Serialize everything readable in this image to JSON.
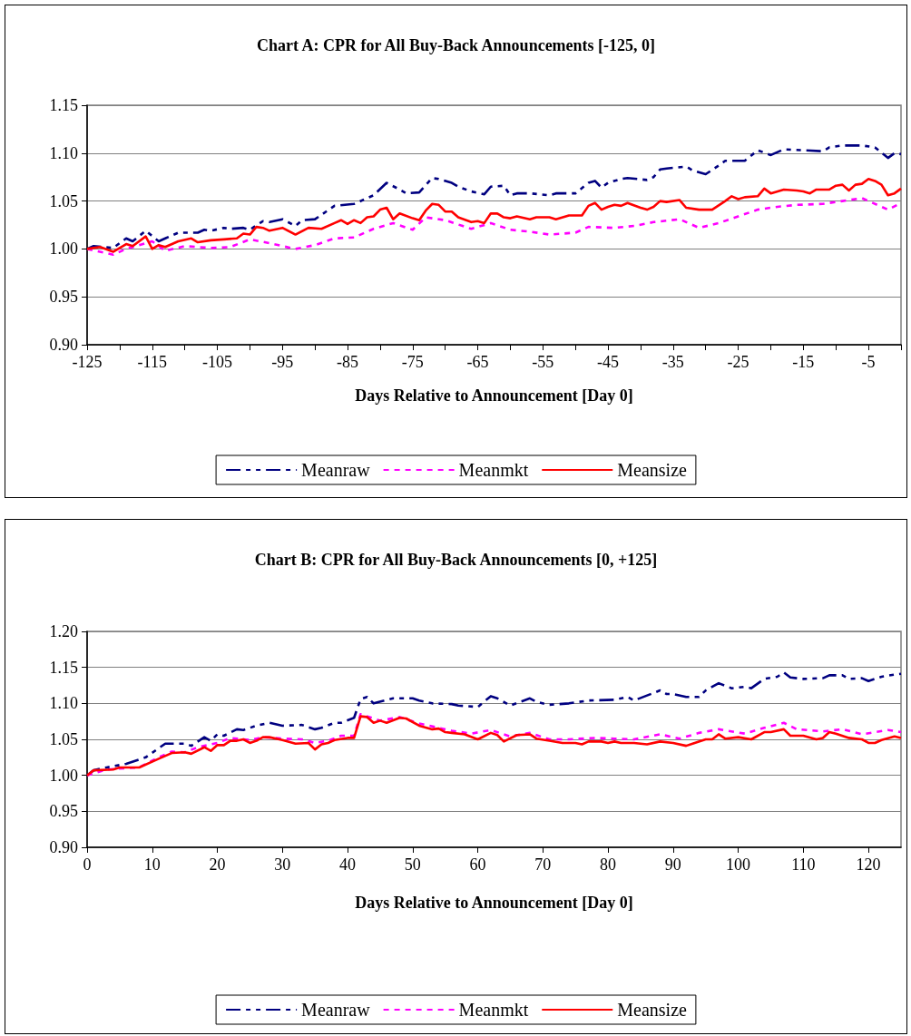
{
  "chart_data": [
    {
      "type": "line",
      "title": "Chart A: CPR for All Buy-Back Announcements [-125, 0]",
      "xlabel": "Days Relative to Announcement [Day 0]",
      "xlim": [
        -125,
        0
      ],
      "xticks": [
        -125,
        {
          "value": -120,
          "label": null
        },
        -115,
        {
          "value": -110,
          "label": null
        },
        -105,
        {
          "value": -100,
          "label": null
        },
        -95,
        {
          "value": -90,
          "label": null
        },
        -85,
        {
          "value": -80,
          "label": null
        },
        -75,
        {
          "value": -70,
          "label": null
        },
        -65,
        {
          "value": -60,
          "label": null
        },
        -55,
        {
          "value": -50,
          "label": null
        },
        -45,
        {
          "value": -40,
          "label": null
        },
        -35,
        {
          "value": -30,
          "label": null
        },
        -25,
        {
          "value": -20,
          "label": null
        },
        -15,
        {
          "value": -10,
          "label": null
        },
        -5,
        {
          "value": 0,
          "label": null
        }
      ],
      "ylim": [
        0.9,
        1.15
      ],
      "yticks": [
        {
          "value": 0.9,
          "label": "0.90"
        },
        {
          "value": 0.95,
          "label": "0.95"
        },
        {
          "value": 1.0,
          "label": "1.00"
        },
        {
          "value": 1.05,
          "label": "1.05"
        },
        {
          "value": 1.1,
          "label": "1.10"
        },
        {
          "value": 1.15,
          "label": "1.15"
        }
      ],
      "grid": "y",
      "legend": "bottom",
      "marker": "none",
      "series": [
        {
          "name": "Meanraw",
          "color": "#000080",
          "line_style": "dashed",
          "x": [
            -125,
            -124,
            -121,
            -119,
            -118,
            -116,
            -114,
            -113,
            -111,
            -108,
            -107,
            -106,
            -104,
            -103,
            -101,
            -100,
            -98,
            -97,
            -95,
            -93,
            -92,
            -90,
            -87,
            -84,
            -81,
            -79,
            -77,
            -76,
            -74,
            -72,
            -71,
            -69,
            -68,
            -66,
            -64,
            -63,
            -61,
            -60,
            -59,
            -57,
            -54,
            -53,
            -50,
            -48,
            -47,
            -46,
            -45,
            -43,
            -42,
            -39,
            -38,
            -37,
            -36,
            -33,
            -32,
            -30,
            -28,
            -27,
            -24,
            -22,
            -20,
            -18,
            -15,
            -12,
            -11,
            -9,
            -6,
            -4,
            -2,
            -1,
            0
          ],
          "values": [
            1.0,
            1.003,
            1.001,
            1.011,
            1.008,
            1.019,
            1.008,
            1.011,
            1.017,
            1.017,
            1.02,
            1.019,
            1.022,
            1.021,
            1.022,
            1.02,
            1.029,
            1.028,
            1.031,
            1.024,
            1.03,
            1.031,
            1.045,
            1.047,
            1.056,
            1.069,
            1.062,
            1.058,
            1.059,
            1.074,
            1.073,
            1.069,
            1.065,
            1.06,
            1.057,
            1.065,
            1.066,
            1.056,
            1.058,
            1.058,
            1.056,
            1.058,
            1.058,
            1.069,
            1.071,
            1.064,
            1.069,
            1.073,
            1.074,
            1.072,
            1.075,
            1.083,
            1.084,
            1.086,
            1.082,
            1.078,
            1.087,
            1.092,
            1.092,
            1.103,
            1.098,
            1.104,
            1.103,
            1.102,
            1.106,
            1.108,
            1.108,
            1.106,
            1.095,
            1.1,
            1.099
          ]
        },
        {
          "name": "Meanmkt",
          "color": "#ff00ff",
          "line_style": "dotted",
          "x": [
            -125,
            -121,
            -119,
            -115,
            -113,
            -110,
            -106,
            -103,
            -100,
            -97,
            -93,
            -90,
            -87,
            -84,
            -81,
            -78,
            -75,
            -73,
            -70,
            -66,
            -63,
            -60,
            -57,
            -54,
            -50,
            -48,
            -44,
            -41,
            -38,
            -34,
            -31,
            -28,
            -25,
            -22,
            -19,
            -16,
            -12,
            -9,
            -6,
            -2,
            0
          ],
          "values": [
            1.0,
            0.994,
            1.0,
            1.008,
            0.998,
            1.003,
            1.001,
            1.002,
            1.01,
            1.006,
            1.0,
            1.004,
            1.011,
            1.012,
            1.021,
            1.027,
            1.02,
            1.033,
            1.03,
            1.021,
            1.027,
            1.02,
            1.018,
            1.015,
            1.017,
            1.023,
            1.022,
            1.024,
            1.028,
            1.031,
            1.022,
            1.027,
            1.034,
            1.041,
            1.044,
            1.046,
            1.047,
            1.05,
            1.053,
            1.041,
            1.048
          ]
        },
        {
          "name": "Meansize",
          "color": "#ff0000",
          "line_style": "solid",
          "x": [
            -125,
            -123,
            -121,
            -119,
            -118,
            -116,
            -115,
            -114,
            -113,
            -111,
            -109,
            -108,
            -106,
            -104,
            -102,
            -101,
            -100,
            -99,
            -98,
            -97,
            -95,
            -93,
            -91,
            -89,
            -87,
            -86,
            -85,
            -84,
            -83,
            -82,
            -81,
            -80,
            -79,
            -78,
            -77,
            -75,
            -74,
            -73,
            -72,
            -71,
            -70,
            -69,
            -68,
            -66,
            -65,
            -64,
            -63,
            -62,
            -61,
            -60,
            -59,
            -57,
            -56,
            -54,
            -53,
            -51,
            -49,
            -48,
            -47,
            -46,
            -45,
            -44,
            -43,
            -42,
            -40,
            -39,
            -38,
            -37,
            -36,
            -34,
            -33,
            -31,
            -29,
            -27,
            -26,
            -25,
            -24,
            -22,
            -21,
            -20,
            -18,
            -16,
            -15,
            -14,
            -13,
            -11,
            -10,
            -9,
            -8,
            -7,
            -6,
            -5,
            -4,
            -3,
            -2,
            -1,
            0
          ],
          "values": [
            1.0,
            1.002,
            0.997,
            1.005,
            1.003,
            1.013,
            1.0,
            1.004,
            1.002,
            1.008,
            1.011,
            1.007,
            1.009,
            1.01,
            1.011,
            1.016,
            1.015,
            1.023,
            1.022,
            1.019,
            1.022,
            1.015,
            1.022,
            1.021,
            1.027,
            1.03,
            1.026,
            1.03,
            1.027,
            1.033,
            1.034,
            1.041,
            1.043,
            1.031,
            1.037,
            1.032,
            1.03,
            1.04,
            1.047,
            1.046,
            1.039,
            1.039,
            1.033,
            1.028,
            1.029,
            1.027,
            1.037,
            1.037,
            1.033,
            1.032,
            1.034,
            1.031,
            1.033,
            1.033,
            1.031,
            1.035,
            1.035,
            1.045,
            1.048,
            1.041,
            1.044,
            1.046,
            1.045,
            1.048,
            1.043,
            1.041,
            1.044,
            1.05,
            1.049,
            1.051,
            1.043,
            1.041,
            1.041,
            1.05,
            1.055,
            1.052,
            1.054,
            1.055,
            1.063,
            1.058,
            1.062,
            1.061,
            1.06,
            1.058,
            1.062,
            1.062,
            1.066,
            1.067,
            1.061,
            1.067,
            1.068,
            1.073,
            1.071,
            1.067,
            1.056,
            1.058,
            1.063
          ]
        }
      ]
    },
    {
      "type": "line",
      "title": "Chart B: CPR for All Buy-Back Announcements [0, +125]",
      "xlabel": "Days Relative to Announcement [Day 0]",
      "xlim": [
        0,
        125
      ],
      "xticks": [
        0,
        10,
        20,
        30,
        40,
        50,
        60,
        70,
        80,
        90,
        100,
        110,
        120
      ],
      "ylim": [
        0.9,
        1.2
      ],
      "yticks": [
        {
          "value": 0.9,
          "label": "0.90"
        },
        {
          "value": 0.95,
          "label": "0.95"
        },
        {
          "value": 1.0,
          "label": "1.00"
        },
        {
          "value": 1.05,
          "label": "1.05"
        },
        {
          "value": 1.1,
          "label": "1.10"
        },
        {
          "value": 1.15,
          "label": "1.15"
        },
        {
          "value": 1.2,
          "label": "1.20"
        }
      ],
      "grid": "y",
      "legend": "bottom",
      "marker": "none",
      "series": [
        {
          "name": "Meanraw",
          "color": "#000080",
          "line_style": "dashed",
          "x": [
            0,
            1,
            3,
            6,
            9,
            12,
            15,
            16,
            18,
            19,
            20,
            21,
            23,
            24,
            26,
            28,
            30,
            33,
            35,
            36,
            38,
            39,
            41,
            42,
            43,
            44,
            47,
            50,
            51,
            53,
            56,
            57,
            60,
            62,
            63,
            65,
            68,
            69,
            71,
            74,
            77,
            81,
            83,
            84,
            86,
            88,
            89,
            90,
            92,
            94,
            95,
            97,
            99,
            101,
            102,
            104,
            106,
            107,
            108,
            110,
            113,
            114,
            116,
            117,
            119,
            120,
            122,
            124,
            125
          ],
          "values": [
            1.0,
            1.007,
            1.011,
            1.016,
            1.025,
            1.044,
            1.044,
            1.041,
            1.053,
            1.048,
            1.057,
            1.055,
            1.064,
            1.063,
            1.069,
            1.073,
            1.069,
            1.07,
            1.064,
            1.066,
            1.073,
            1.073,
            1.08,
            1.106,
            1.109,
            1.1,
            1.107,
            1.107,
            1.104,
            1.1,
            1.099,
            1.097,
            1.095,
            1.11,
            1.107,
            1.097,
            1.107,
            1.102,
            1.098,
            1.1,
            1.104,
            1.105,
            1.109,
            1.104,
            1.111,
            1.118,
            1.113,
            1.113,
            1.109,
            1.109,
            1.118,
            1.128,
            1.121,
            1.123,
            1.121,
            1.134,
            1.137,
            1.143,
            1.136,
            1.134,
            1.135,
            1.139,
            1.139,
            1.134,
            1.135,
            1.131,
            1.137,
            1.14,
            1.141
          ]
        },
        {
          "name": "Meanmkt",
          "color": "#ff00ff",
          "line_style": "dotted",
          "x": [
            0,
            3,
            6,
            8,
            11,
            13,
            15,
            17,
            20,
            22,
            25,
            27,
            30,
            33,
            35,
            37,
            39,
            41,
            42,
            45,
            48,
            51,
            54,
            56,
            59,
            62,
            65,
            68,
            71,
            74,
            78,
            81,
            84,
            88,
            91,
            94,
            97,
            101,
            104,
            107,
            109,
            113,
            116,
            119,
            123,
            125
          ],
          "values": [
            1.0,
            1.008,
            1.01,
            1.011,
            1.025,
            1.033,
            1.032,
            1.039,
            1.045,
            1.052,
            1.049,
            1.053,
            1.051,
            1.05,
            1.045,
            1.048,
            1.055,
            1.055,
            1.085,
            1.076,
            1.081,
            1.072,
            1.066,
            1.062,
            1.058,
            1.063,
            1.054,
            1.059,
            1.05,
            1.05,
            1.052,
            1.051,
            1.05,
            1.057,
            1.051,
            1.059,
            1.064,
            1.058,
            1.066,
            1.073,
            1.064,
            1.061,
            1.064,
            1.057,
            1.063,
            1.06
          ]
        },
        {
          "name": "Meansize",
          "color": "#ff0000",
          "line_style": "solid",
          "x": [
            0,
            1,
            4,
            5,
            8,
            11,
            13,
            15,
            16,
            18,
            19,
            20,
            21,
            22,
            23,
            24,
            25,
            26,
            27,
            28,
            30,
            32,
            34,
            35,
            36,
            37,
            38,
            40,
            41,
            42,
            43,
            44,
            45,
            46,
            48,
            49,
            51,
            53,
            54,
            55,
            56,
            58,
            60,
            62,
            63,
            64,
            66,
            68,
            69,
            71,
            73,
            75,
            76,
            77,
            79,
            80,
            81,
            82,
            84,
            86,
            88,
            90,
            92,
            93,
            95,
            96,
            97,
            98,
            100,
            102,
            104,
            105,
            107,
            108,
            110,
            112,
            113,
            114,
            115,
            117,
            119,
            120,
            121,
            122,
            124,
            125
          ],
          "values": [
            1.0,
            1.007,
            1.008,
            1.011,
            1.011,
            1.023,
            1.031,
            1.032,
            1.03,
            1.039,
            1.034,
            1.042,
            1.042,
            1.048,
            1.048,
            1.05,
            1.045,
            1.048,
            1.053,
            1.053,
            1.049,
            1.044,
            1.045,
            1.036,
            1.043,
            1.045,
            1.049,
            1.052,
            1.052,
            1.082,
            1.081,
            1.073,
            1.076,
            1.073,
            1.08,
            1.079,
            1.069,
            1.064,
            1.065,
            1.06,
            1.059,
            1.057,
            1.05,
            1.059,
            1.056,
            1.047,
            1.056,
            1.057,
            1.051,
            1.048,
            1.045,
            1.045,
            1.043,
            1.047,
            1.047,
            1.045,
            1.047,
            1.045,
            1.045,
            1.043,
            1.047,
            1.045,
            1.041,
            1.044,
            1.05,
            1.05,
            1.057,
            1.051,
            1.053,
            1.05,
            1.06,
            1.06,
            1.064,
            1.055,
            1.055,
            1.05,
            1.052,
            1.06,
            1.058,
            1.052,
            1.05,
            1.045,
            1.045,
            1.049,
            1.054,
            1.052
          ]
        }
      ]
    }
  ]
}
